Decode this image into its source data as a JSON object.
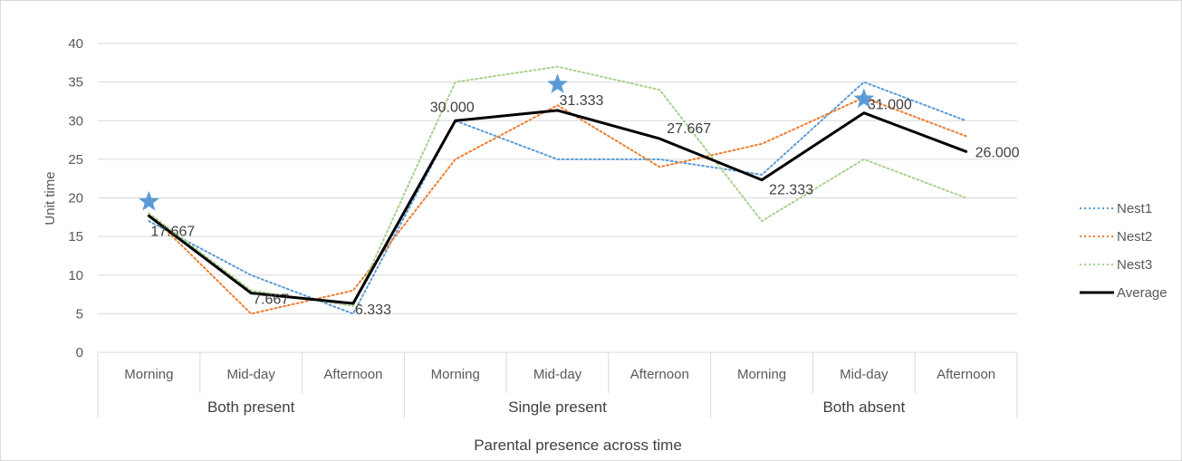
{
  "chart_data": {
    "type": "line",
    "title": "",
    "xlabel": "Parental presence across time",
    "ylabel": "Unit time",
    "ylim": [
      0,
      40
    ],
    "yticks": [
      0,
      5,
      10,
      15,
      20,
      25,
      30,
      35,
      40
    ],
    "grid": true,
    "legend_position": "right",
    "categories": [
      "Morning",
      "Mid-day",
      "Afternoon",
      "Morning",
      "Mid-day",
      "Afternoon",
      "Morning",
      "Mid-day",
      "Afternoon"
    ],
    "groups": [
      {
        "label": "Both present",
        "span": 3
      },
      {
        "label": "Single present",
        "span": 3
      },
      {
        "label": "Both absent",
        "span": 3
      }
    ],
    "series": [
      {
        "name": "Nest1",
        "color": "#5b9bd5",
        "style": "dotted",
        "values": [
          17,
          10,
          5,
          30,
          25,
          25,
          23,
          35,
          30
        ]
      },
      {
        "name": "Nest2",
        "color": "#ed7d31",
        "style": "dotted",
        "values": [
          18,
          5,
          8,
          25,
          32,
          24,
          27,
          33,
          28
        ]
      },
      {
        "name": "Nest3",
        "color": "#a9d18e",
        "style": "dotted",
        "values": [
          18,
          8,
          6,
          35,
          37,
          34,
          17,
          25,
          20
        ]
      },
      {
        "name": "Average",
        "color": "#000000",
        "style": "solid",
        "values": [
          17.667,
          7.667,
          6.333,
          30.0,
          31.333,
          27.667,
          22.333,
          31.0,
          26.0
        ]
      }
    ],
    "data_labels": [
      "17.667",
      "7.667",
      "6.333",
      "30.000",
      "31.333",
      "27.667",
      "22.333",
      "31.000",
      "26.000"
    ],
    "star_markers": {
      "color": "#5b9bd5",
      "indices": [
        0,
        4,
        7
      ],
      "y_values": [
        19.5,
        34.7,
        32.8
      ]
    }
  }
}
